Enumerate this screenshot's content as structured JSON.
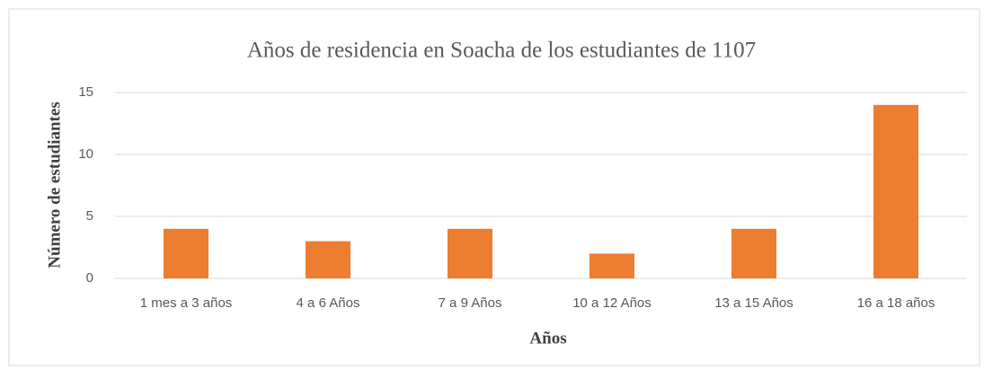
{
  "chart_data": {
    "type": "bar",
    "title": "Años de residencia  en Soacha de los estudiantes  de 1107",
    "x_label": "Años",
    "y_label": "Número de estudiantes",
    "categories": [
      "1 mes a 3 años",
      "4 a 6 Años",
      "7 a 9 Años",
      "10 a 12 Años",
      "13 a 15 Años",
      "16 a 18 años"
    ],
    "values": [
      4,
      3,
      4,
      2,
      4,
      14
    ],
    "color": "#ed7d31",
    "ylim": [
      0,
      15
    ],
    "yticks": [
      0,
      5,
      10,
      15
    ],
    "grid": true
  }
}
